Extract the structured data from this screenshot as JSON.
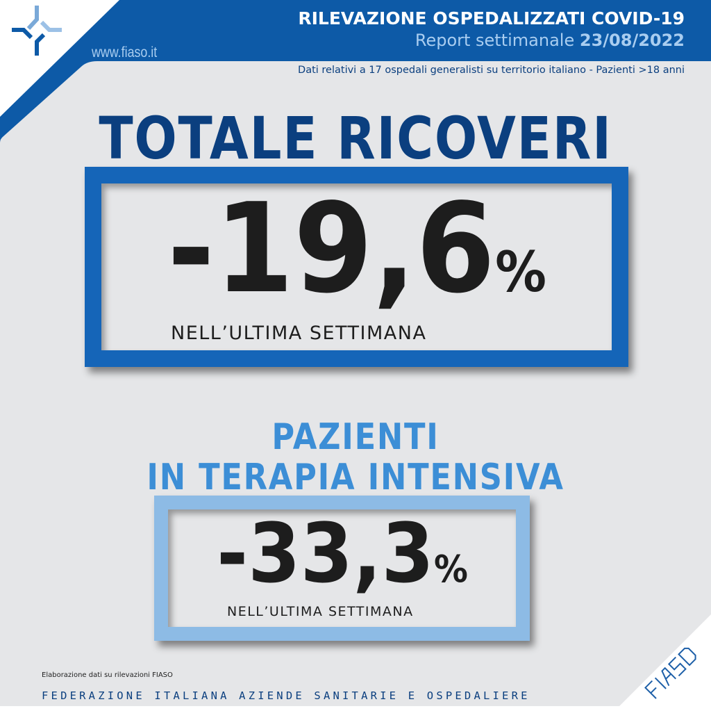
{
  "header": {
    "title": "RILEVAZIONE OSPEDALIZZATI COVID-19",
    "subtitle_prefix": "Report settimanale",
    "date": "23/08/2022",
    "website": "www.fiaso.it",
    "note": "Dati relativi a 17 ospedali generalisti su territorio italiano - Pazienti >18 anni"
  },
  "section1": {
    "title": "TOTALE RICOVERI",
    "value": "-19,6",
    "unit": "%",
    "caption": "NELL’ULTIMA SETTIMANA"
  },
  "section2": {
    "title_line1": "PAZIENTI",
    "title_line2": "IN TERAPIA INTENSIVA",
    "value": "-33,3",
    "unit": "%",
    "caption": "NELL’ULTIMA SETTIMANA"
  },
  "footer": {
    "source": "Elaborazione dati su rilevazioni FIASO",
    "federation": "FEDERAZIONE ITALIANA AZIENDE SANITARIE E OSPEDALIERE",
    "logo_text": "FIASO"
  },
  "colors": {
    "brand_blue": "#0d5aa7",
    "navy": "#0b3f7f",
    "light_blue": "#8dbbe5",
    "panel_gray": "#e5e6e8"
  }
}
